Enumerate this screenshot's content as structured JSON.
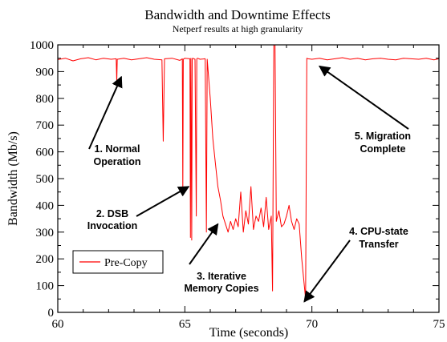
{
  "chart_data": {
    "type": "line",
    "title": "Bandwidth and Downtime Effects",
    "subtitle": "Netperf results at high granularity",
    "xlabel": "Time (seconds)",
    "ylabel": "Bandwidth (Mb/s)",
    "xlim": [
      60,
      75
    ],
    "ylim": [
      0,
      1000
    ],
    "xticks": [
      60,
      65,
      70,
      75
    ],
    "yticks": [
      0,
      100,
      200,
      300,
      400,
      500,
      600,
      700,
      800,
      900,
      1000
    ],
    "grid": false,
    "legend_position": "bottom-left",
    "series": [
      {
        "name": "Pre-Copy",
        "color": "#ff0000",
        "marker": "none",
        "x": [
          60.0,
          60.3,
          60.6,
          60.9,
          61.2,
          61.5,
          61.8,
          62.1,
          62.3,
          62.32,
          62.34,
          62.6,
          62.9,
          63.2,
          63.5,
          63.8,
          64.1,
          64.15,
          64.2,
          64.5,
          64.8,
          64.9,
          64.92,
          64.94,
          65.0,
          65.2,
          65.22,
          65.24,
          65.27,
          65.29,
          65.31,
          65.4,
          65.45,
          65.47,
          65.5,
          65.6,
          65.8,
          65.85,
          65.88,
          66.0,
          66.1,
          66.2,
          66.3,
          66.4,
          66.5,
          66.6,
          66.7,
          66.8,
          66.9,
          67.0,
          67.1,
          67.2,
          67.3,
          67.4,
          67.5,
          67.6,
          67.7,
          67.8,
          67.9,
          68.0,
          68.1,
          68.2,
          68.3,
          68.4,
          68.45,
          68.5,
          68.55,
          68.6,
          68.7,
          68.8,
          68.9,
          69.0,
          69.1,
          69.2,
          69.3,
          69.4,
          69.5,
          69.6,
          69.7,
          69.75,
          69.8,
          69.85,
          70.0,
          70.3,
          70.6,
          70.9,
          71.2,
          71.5,
          71.8,
          72.1,
          72.4,
          72.7,
          73.0,
          73.3,
          73.6,
          73.9,
          74.2,
          74.5,
          74.8,
          75.0
        ],
        "y": [
          945,
          950,
          940,
          948,
          952,
          944,
          950,
          946,
          948,
          860,
          946,
          950,
          944,
          948,
          952,
          946,
          944,
          640,
          948,
          950,
          942,
          948,
          440,
          946,
          950,
          948,
          280,
          950,
          270,
          948,
          950,
          946,
          360,
          948,
          950,
          946,
          948,
          300,
          946,
          800,
          650,
          560,
          470,
          420,
          360,
          330,
          300,
          340,
          310,
          350,
          320,
          450,
          300,
          380,
          330,
          470,
          310,
          360,
          340,
          390,
          320,
          430,
          310,
          360,
          80,
          1000,
          1000,
          340,
          380,
          320,
          330,
          360,
          400,
          340,
          310,
          350,
          330,
          200,
          100,
          50,
          950,
          948,
          946,
          950,
          944,
          948,
          952,
          946,
          950,
          944,
          948,
          950,
          946,
          944,
          950,
          948,
          946,
          950,
          944,
          948
        ]
      }
    ],
    "annotations": [
      {
        "lines": [
          "1. Normal",
          "Operation"
        ],
        "target": [
          62.5,
          880
        ]
      },
      {
        "lines": [
          "2. DSB",
          "Invocation"
        ],
        "target": [
          65.15,
          470
        ]
      },
      {
        "lines": [
          "3. Iterative",
          "Memory Copies"
        ],
        "target": [
          66.3,
          330
        ]
      },
      {
        "lines": [
          "4. CPU-state",
          "Transfer"
        ],
        "target": [
          69.7,
          40
        ]
      },
      {
        "lines": [
          "5. Migration",
          "Complete"
        ],
        "target": [
          70.3,
          920
        ]
      }
    ]
  }
}
